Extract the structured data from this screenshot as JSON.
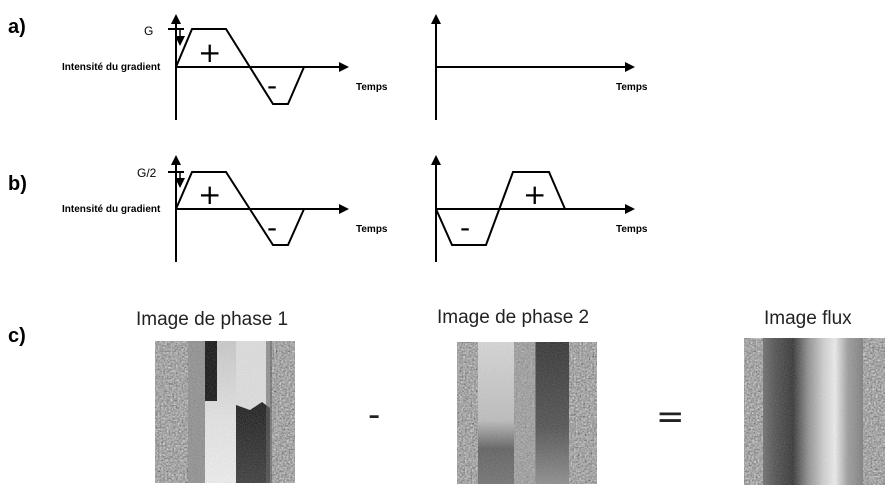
{
  "panels": {
    "a": {
      "label": "a)",
      "amplitude_label": "G",
      "y_label": "Intensité du gradient",
      "time_label_left": "Temps",
      "time_label_right": "Temps",
      "lobes_left": [
        "+",
        "-"
      ]
    },
    "b": {
      "label": "b)",
      "amplitude_label": "G/2",
      "y_label": "Intensité du gradient",
      "time_label_left": "Temps",
      "time_label_right": "Temps",
      "lobes_left": [
        "+",
        "-"
      ],
      "lobes_right": [
        "-",
        "+"
      ]
    },
    "c": {
      "label": "c)",
      "image1_caption": "Image de phase 1",
      "image2_caption": "Image de phase 2",
      "image3_caption": "Image flux",
      "operator_minus": "-",
      "operator_equals": "="
    }
  },
  "colors": {
    "ink": "#000000",
    "background": "#ffffff"
  }
}
